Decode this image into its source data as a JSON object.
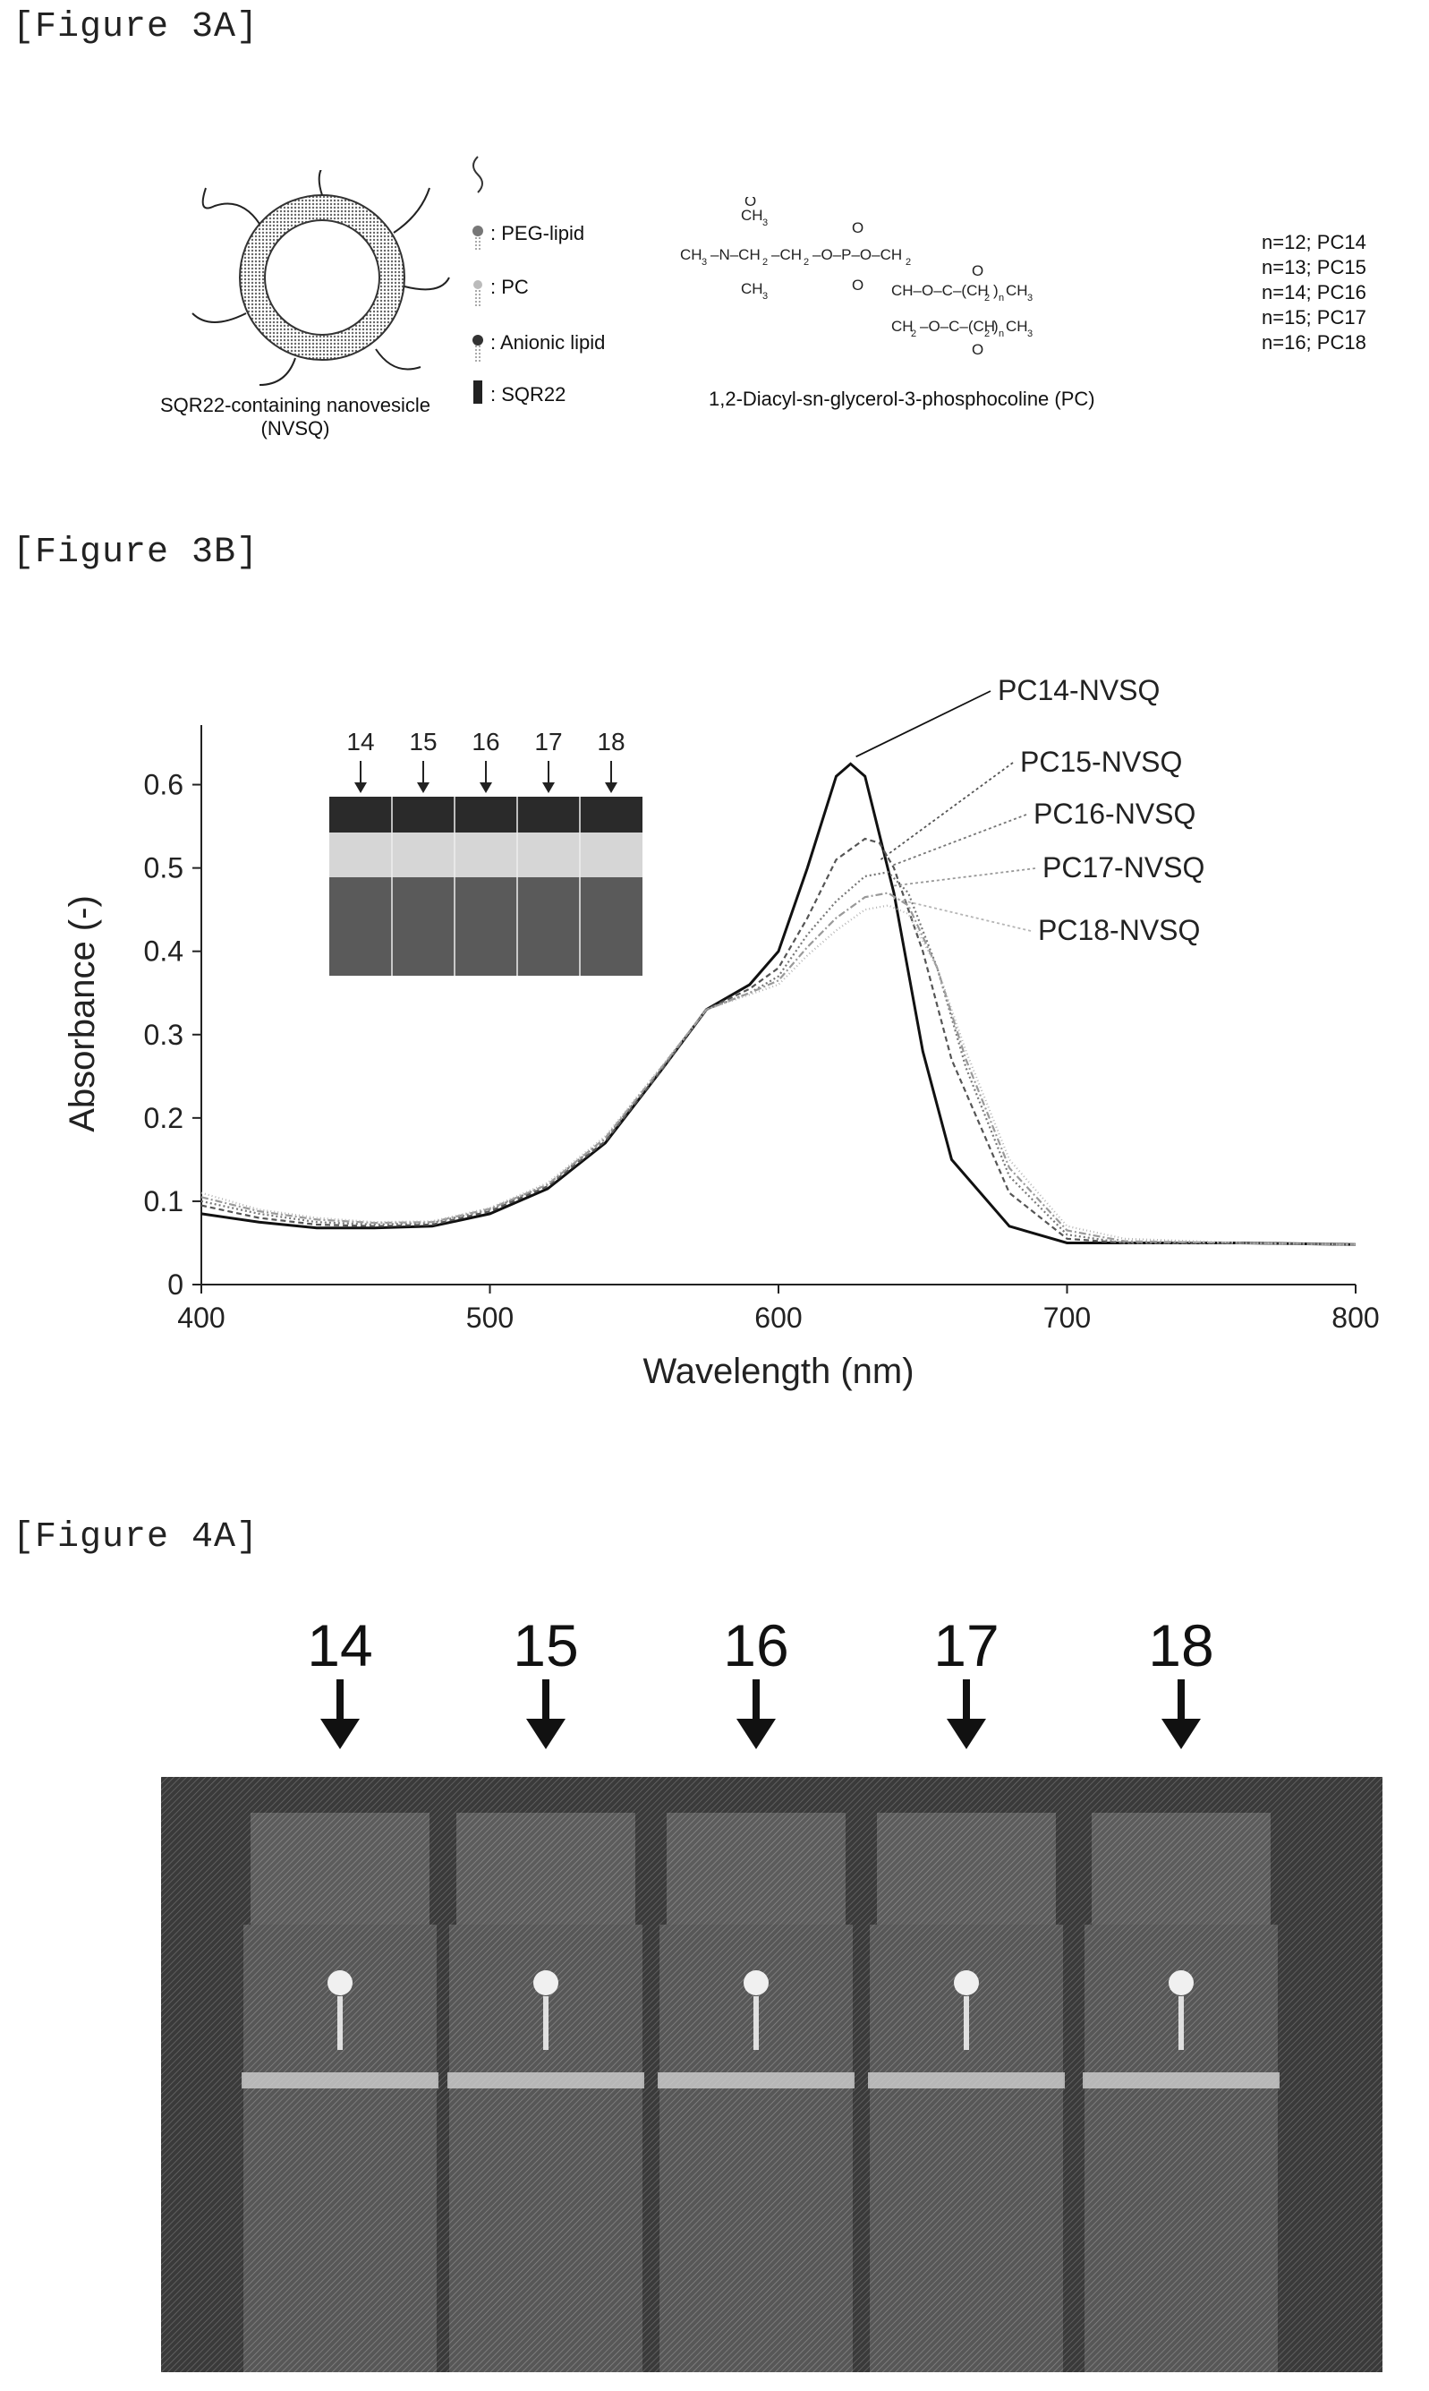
{
  "figures": {
    "fig3a_label": "[Figure 3A]",
    "fig3b_label": "[Figure 3B]",
    "fig4a_label": "[Figure 4A]"
  },
  "fig3a": {
    "vesicle_caption_1": "SQR22-containing nanovesicle",
    "vesicle_caption_2": "(NVSQ)",
    "legend": [
      ": PEG-lipid",
      ": PC",
      ": Anionic lipid",
      ": SQR22"
    ],
    "structure_caption": "1,2-Diacyl-sn-glycerol-3-phosphocoline (PC)",
    "n_values": [
      "n=12; PC14",
      "n=13; PC15",
      "n=14; PC16",
      "n=15; PC17",
      "n=16; PC18"
    ]
  },
  "chart_data": {
    "type": "line",
    "xlabel": "Wavelength (nm)",
    "ylabel": "Absorbance (-)",
    "xlim": [
      400,
      800
    ],
    "ylim": [
      0,
      0.65
    ],
    "xticks": [
      400,
      500,
      600,
      700,
      800
    ],
    "yticks": [
      0,
      0.1,
      0.2,
      0.3,
      0.4,
      0.5,
      0.6
    ],
    "inset_labels": [
      "14",
      "15",
      "16",
      "17",
      "18"
    ],
    "series": [
      {
        "name": "PC14-NVSQ",
        "color": "#111111",
        "dash": "",
        "x": [
          400,
          420,
          440,
          460,
          480,
          500,
          520,
          540,
          560,
          575,
          590,
          600,
          610,
          620,
          625,
          630,
          640,
          650,
          660,
          680,
          700,
          720,
          760,
          800
        ],
        "y": [
          0.085,
          0.075,
          0.068,
          0.068,
          0.07,
          0.085,
          0.115,
          0.17,
          0.26,
          0.33,
          0.36,
          0.4,
          0.5,
          0.61,
          0.625,
          0.61,
          0.47,
          0.28,
          0.15,
          0.07,
          0.05,
          0.05,
          0.05,
          0.048
        ]
      },
      {
        "name": "PC15-NVSQ",
        "color": "#555555",
        "dash": "6,4",
        "x": [
          400,
          420,
          440,
          460,
          480,
          500,
          520,
          540,
          560,
          575,
          590,
          600,
          610,
          620,
          630,
          635,
          640,
          650,
          660,
          680,
          700,
          720,
          760,
          800
        ],
        "y": [
          0.095,
          0.08,
          0.072,
          0.07,
          0.072,
          0.088,
          0.118,
          0.172,
          0.26,
          0.33,
          0.355,
          0.38,
          0.44,
          0.51,
          0.535,
          0.53,
          0.5,
          0.4,
          0.27,
          0.11,
          0.055,
          0.05,
          0.05,
          0.048
        ]
      },
      {
        "name": "PC16-NVSQ",
        "color": "#777777",
        "dash": "2,3",
        "x": [
          400,
          420,
          440,
          460,
          480,
          500,
          520,
          540,
          560,
          575,
          590,
          600,
          610,
          620,
          630,
          638,
          645,
          655,
          665,
          680,
          700,
          720,
          760,
          800
        ],
        "y": [
          0.1,
          0.085,
          0.075,
          0.072,
          0.074,
          0.09,
          0.12,
          0.175,
          0.262,
          0.33,
          0.35,
          0.37,
          0.42,
          0.46,
          0.49,
          0.495,
          0.47,
          0.38,
          0.26,
          0.13,
          0.06,
          0.05,
          0.05,
          0.048
        ]
      },
      {
        "name": "PC17-NVSQ",
        "color": "#999999",
        "dash": "8,3,2,3",
        "x": [
          400,
          420,
          440,
          460,
          480,
          500,
          520,
          540,
          560,
          575,
          590,
          600,
          610,
          620,
          630,
          638,
          645,
          655,
          665,
          680,
          700,
          720,
          760,
          800
        ],
        "y": [
          0.105,
          0.088,
          0.078,
          0.074,
          0.075,
          0.091,
          0.12,
          0.176,
          0.263,
          0.33,
          0.35,
          0.365,
          0.405,
          0.44,
          0.465,
          0.47,
          0.455,
          0.38,
          0.27,
          0.14,
          0.065,
          0.052,
          0.05,
          0.048
        ]
      },
      {
        "name": "PC18-NVSQ",
        "color": "#b5b5b5",
        "dash": "1,3",
        "x": [
          400,
          420,
          440,
          460,
          480,
          500,
          520,
          540,
          560,
          575,
          590,
          600,
          610,
          620,
          630,
          638,
          645,
          655,
          665,
          680,
          700,
          720,
          760,
          800
        ],
        "y": [
          0.11,
          0.09,
          0.08,
          0.075,
          0.076,
          0.092,
          0.122,
          0.178,
          0.264,
          0.33,
          0.348,
          0.36,
          0.395,
          0.425,
          0.45,
          0.455,
          0.445,
          0.38,
          0.28,
          0.15,
          0.07,
          0.055,
          0.05,
          0.048
        ]
      }
    ]
  },
  "fig4a": {
    "arrow_labels": [
      "14",
      "15",
      "16",
      "17",
      "18"
    ]
  }
}
